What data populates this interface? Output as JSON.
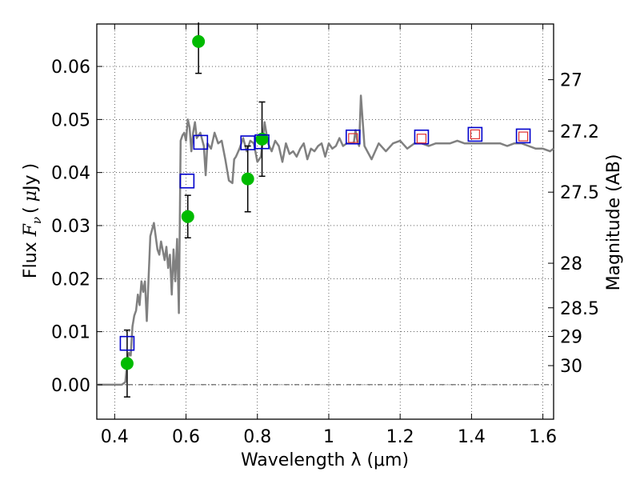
{
  "chart_data": {
    "type": "scatter",
    "xlabel": "Wavelength  λ (μm)",
    "ylabel": "Flux  F_ν ( μJy )",
    "ylabel_parts": {
      "prefix": "Flux  ",
      "var": "F",
      "sub": "ν",
      "open": "(",
      "mu": "μ",
      "unit": "Jy",
      "close": ")"
    },
    "y2label": "Magnitude (AB)",
    "xlim": [
      0.35,
      1.63
    ],
    "ylim": [
      -0.0065,
      0.068
    ],
    "xticks": [
      0.4,
      0.6,
      0.8,
      1.0,
      1.2,
      1.4,
      1.6
    ],
    "xtick_labels": [
      "0.4",
      "0.6",
      "0.8",
      "1",
      "1.2",
      "1.4",
      "1.6"
    ],
    "yticks": [
      0.0,
      0.01,
      0.02,
      0.03,
      0.04,
      0.05,
      0.06
    ],
    "ytick_labels": [
      "0.00",
      "0.01",
      "0.02",
      "0.03",
      "0.04",
      "0.05",
      "0.06"
    ],
    "y2ticks": [
      {
        "label": "27",
        "flux": 0.0575
      },
      {
        "label": "27.2",
        "flux": 0.0478
      },
      {
        "label": "27.5",
        "flux": 0.0363
      },
      {
        "label": "28",
        "flux": 0.0229
      },
      {
        "label": "28.5",
        "flux": 0.0145
      },
      {
        "label": "29",
        "flux": 0.0091
      },
      {
        "label": "30",
        "flux": 0.0036
      }
    ],
    "grid": true,
    "series": [
      {
        "kind": "line",
        "color": "#808080",
        "x": [
          0.35,
          0.42,
          0.43,
          0.435,
          0.44,
          0.445,
          0.45,
          0.455,
          0.46,
          0.465,
          0.47,
          0.475,
          0.48,
          0.485,
          0.49,
          0.5,
          0.51,
          0.52,
          0.525,
          0.53,
          0.54,
          0.545,
          0.55,
          0.555,
          0.56,
          0.565,
          0.57,
          0.575,
          0.58,
          0.585,
          0.59,
          0.595,
          0.6,
          0.605,
          0.61,
          0.615,
          0.62,
          0.625,
          0.63,
          0.64,
          0.65,
          0.655,
          0.66,
          0.67,
          0.68,
          0.69,
          0.7,
          0.71,
          0.72,
          0.73,
          0.735,
          0.74,
          0.75,
          0.76,
          0.77,
          0.78,
          0.79,
          0.8,
          0.81,
          0.82,
          0.83,
          0.84,
          0.85,
          0.86,
          0.87,
          0.88,
          0.89,
          0.9,
          0.91,
          0.92,
          0.93,
          0.94,
          0.95,
          0.96,
          0.97,
          0.98,
          0.99,
          1.0,
          1.01,
          1.02,
          1.03,
          1.04,
          1.05,
          1.06,
          1.07,
          1.075,
          1.08,
          1.085,
          1.09,
          1.1,
          1.12,
          1.14,
          1.16,
          1.18,
          1.2,
          1.22,
          1.24,
          1.26,
          1.28,
          1.3,
          1.32,
          1.34,
          1.36,
          1.38,
          1.4,
          1.42,
          1.44,
          1.46,
          1.48,
          1.5,
          1.52,
          1.54,
          1.56,
          1.58,
          1.6,
          1.62,
          1.63
        ],
        "y": [
          0.0,
          0.0,
          0.0005,
          0.004,
          0.006,
          0.0055,
          0.011,
          0.013,
          0.014,
          0.017,
          0.015,
          0.0195,
          0.0175,
          0.0195,
          0.012,
          0.028,
          0.0305,
          0.0255,
          0.0245,
          0.027,
          0.0235,
          0.026,
          0.022,
          0.0245,
          0.017,
          0.0255,
          0.0195,
          0.0275,
          0.0135,
          0.046,
          0.047,
          0.0475,
          0.046,
          0.05,
          0.0485,
          0.044,
          0.0475,
          0.0495,
          0.0465,
          0.0475,
          0.045,
          0.0395,
          0.0455,
          0.0445,
          0.0475,
          0.0455,
          0.046,
          0.0425,
          0.0385,
          0.038,
          0.0425,
          0.043,
          0.0445,
          0.0465,
          0.044,
          0.046,
          0.0455,
          0.042,
          0.043,
          0.0495,
          0.0455,
          0.044,
          0.046,
          0.045,
          0.042,
          0.0455,
          0.0435,
          0.044,
          0.043,
          0.0445,
          0.0455,
          0.0425,
          0.0445,
          0.044,
          0.045,
          0.0455,
          0.043,
          0.0455,
          0.0445,
          0.045,
          0.0465,
          0.045,
          0.0455,
          0.0455,
          0.0455,
          0.048,
          0.046,
          0.045,
          0.0545,
          0.045,
          0.0425,
          0.0455,
          0.044,
          0.0455,
          0.046,
          0.0445,
          0.0455,
          0.0455,
          0.045,
          0.0455,
          0.0455,
          0.0455,
          0.046,
          0.0455,
          0.0455,
          0.0455,
          0.0455,
          0.0455,
          0.0455,
          0.045,
          0.0455,
          0.0455,
          0.045,
          0.0445,
          0.0445,
          0.044,
          0.0445
        ]
      },
      {
        "kind": "points",
        "marker": "circle",
        "color": "#00bb00",
        "x": [
          0.435,
          0.605,
          0.635,
          0.773,
          0.813
        ],
        "y": [
          0.004,
          0.0317,
          0.0647,
          0.0388,
          0.0463
        ],
        "yerr": [
          0.0063,
          0.004,
          0.006,
          0.0062,
          0.007
        ]
      },
      {
        "kind": "points",
        "marker": "square-open",
        "color": "#0000cc",
        "x": [
          0.435,
          0.603,
          0.641,
          0.773,
          0.813,
          1.068,
          1.26,
          1.41,
          1.545
        ],
        "y": [
          0.0078,
          0.0384,
          0.0457,
          0.0456,
          0.0458,
          0.0467,
          0.0467,
          0.0472,
          0.0469
        ]
      },
      {
        "kind": "points",
        "marker": "square-open-small",
        "color": "#e03030",
        "x": [
          1.068,
          1.26,
          1.41,
          1.545
        ],
        "y": [
          0.0465,
          0.0464,
          0.0472,
          0.0468
        ]
      }
    ]
  }
}
